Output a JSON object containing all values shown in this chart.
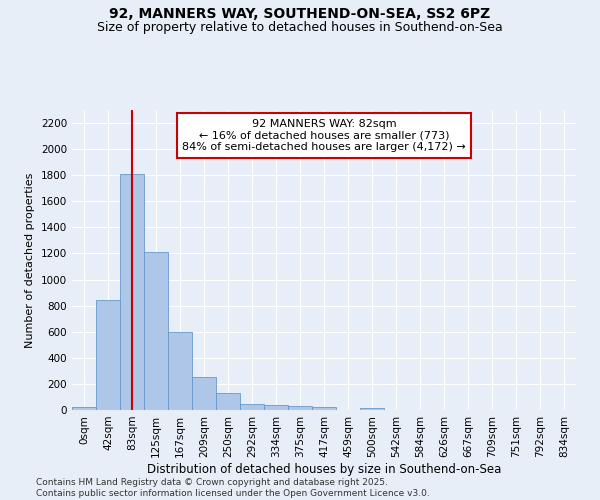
{
  "title": "92, MANNERS WAY, SOUTHEND-ON-SEA, SS2 6PZ",
  "subtitle": "Size of property relative to detached houses in Southend-on-Sea",
  "xlabel": "Distribution of detached houses by size in Southend-on-Sea",
  "ylabel": "Number of detached properties",
  "bar_color": "#aec6e8",
  "bar_edge_color": "#6699cc",
  "vline_color": "#cc0000",
  "vline_x_index": 2,
  "annotation_line1": "92 MANNERS WAY: 82sqm",
  "annotation_line2": "← 16% of detached houses are smaller (773)",
  "annotation_line3": "84% of semi-detached houses are larger (4,172) →",
  "annotation_box_facecolor": "#ffffff",
  "annotation_box_edgecolor": "#cc0000",
  "categories": [
    "0sqm",
    "42sqm",
    "83sqm",
    "125sqm",
    "167sqm",
    "209sqm",
    "250sqm",
    "292sqm",
    "334sqm",
    "375sqm",
    "417sqm",
    "459sqm",
    "500sqm",
    "542sqm",
    "584sqm",
    "626sqm",
    "667sqm",
    "709sqm",
    "751sqm",
    "792sqm",
    "834sqm"
  ],
  "values": [
    25,
    845,
    1810,
    1210,
    600,
    255,
    130,
    48,
    38,
    28,
    20,
    0,
    18,
    0,
    0,
    0,
    0,
    0,
    0,
    0,
    0
  ],
  "ylim": [
    0,
    2300
  ],
  "yticks": [
    0,
    200,
    400,
    600,
    800,
    1000,
    1200,
    1400,
    1600,
    1800,
    2000,
    2200
  ],
  "background_color": "#e8eef8",
  "grid_color": "#ffffff",
  "footer_line1": "Contains HM Land Registry data © Crown copyright and database right 2025.",
  "footer_line2": "Contains public sector information licensed under the Open Government Licence v3.0.",
  "title_fontsize": 10,
  "subtitle_fontsize": 9,
  "xlabel_fontsize": 8.5,
  "ylabel_fontsize": 8,
  "tick_fontsize": 7.5,
  "annotation_fontsize": 8,
  "footer_fontsize": 6.5
}
